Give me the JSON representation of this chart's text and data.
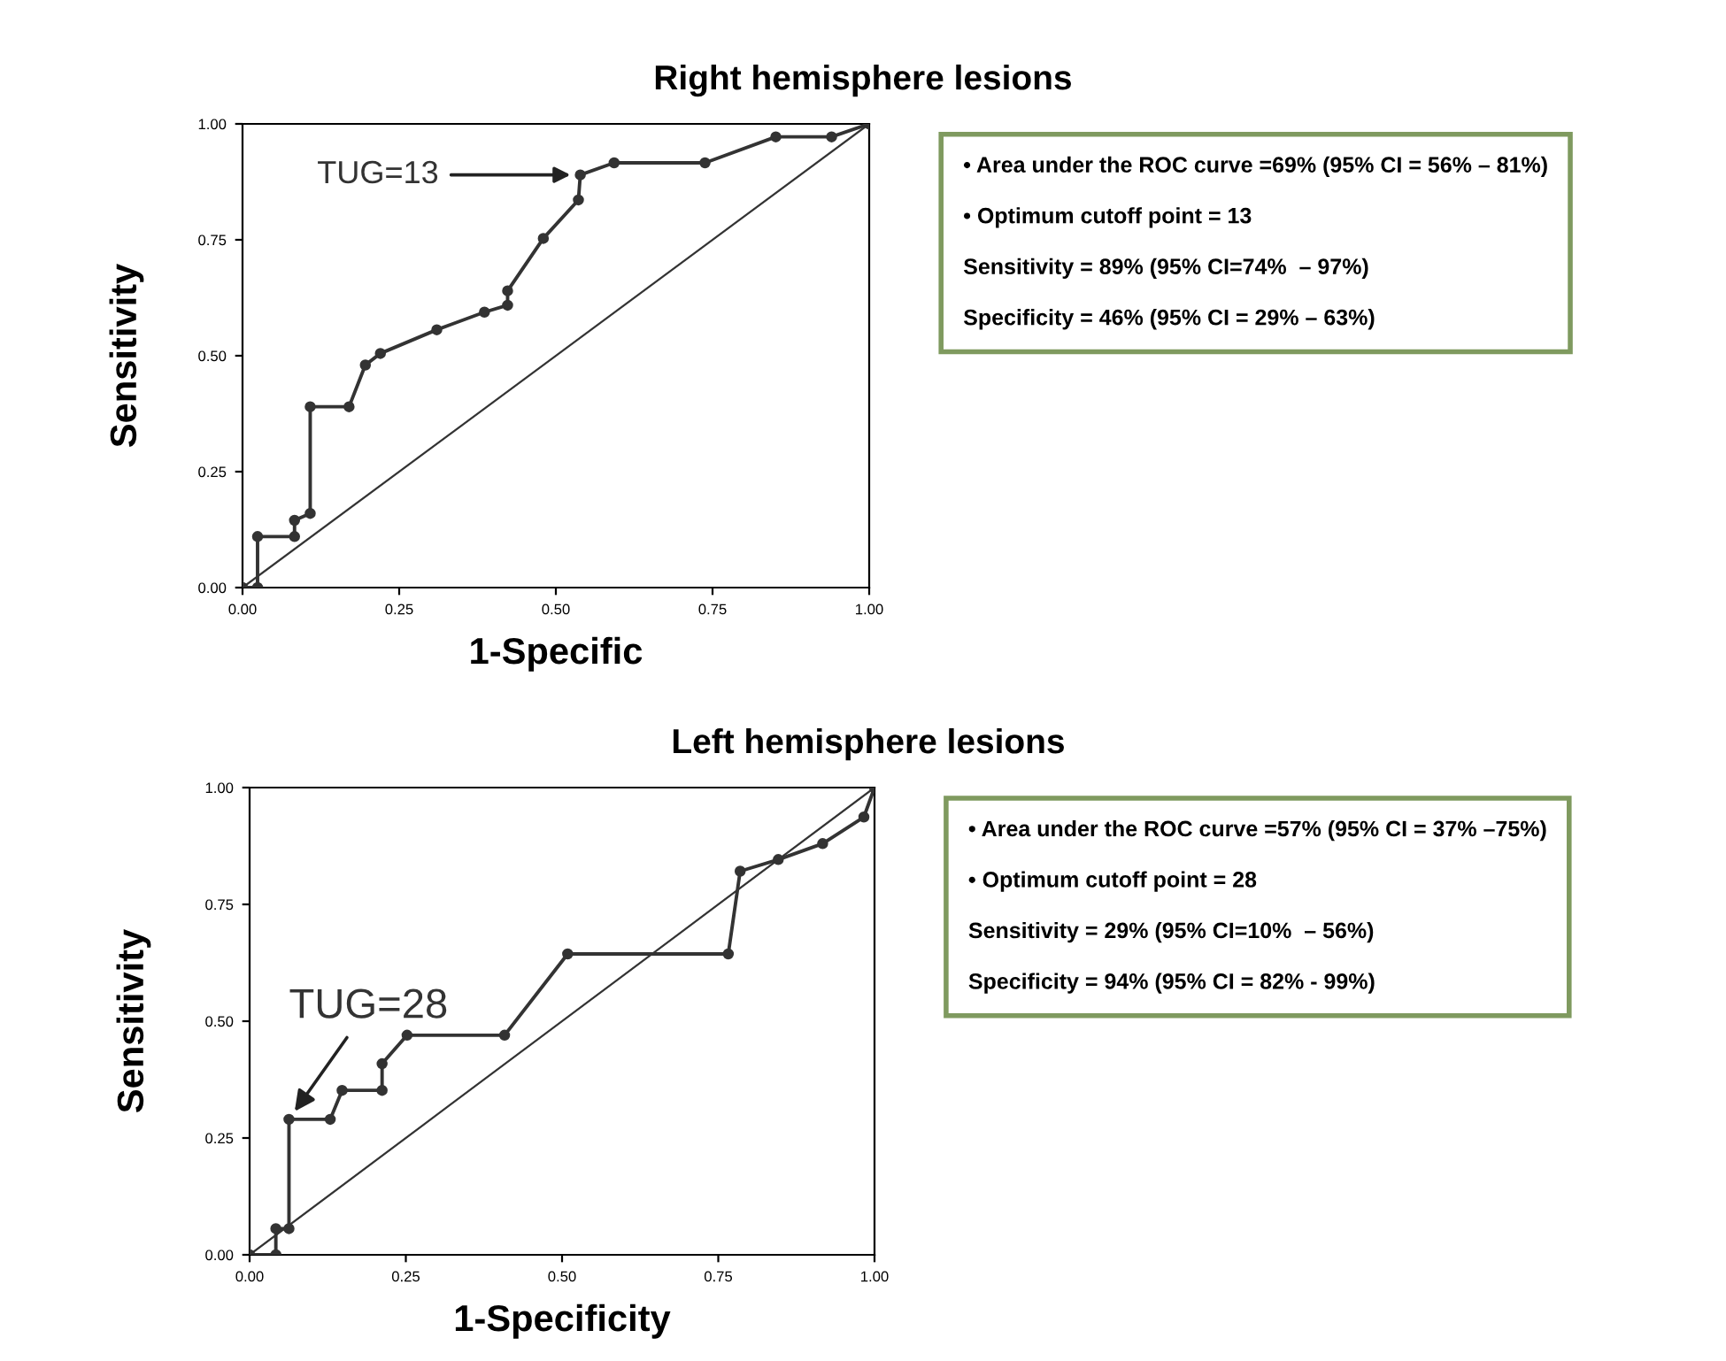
{
  "chart_data": [
    {
      "type": "line",
      "title": "Right hemisphere lesions",
      "xlabel": "1-Specific",
      "ylabel": "Sensitivity",
      "xlim": [
        0,
        1
      ],
      "ylim": [
        0,
        1
      ],
      "xticks": [
        {
          "value": 0,
          "label": "0.00"
        },
        {
          "value": 0.25,
          "label": "0.25"
        },
        {
          "value": 0.5,
          "label": "0.50"
        },
        {
          "value": 0.75,
          "label": "0.75"
        },
        {
          "value": 1,
          "label": "1.00"
        }
      ],
      "yticks": [
        {
          "value": 0,
          "label": "0.00"
        },
        {
          "value": 0.25,
          "label": "0.25"
        },
        {
          "value": 0.5,
          "label": "0.50"
        },
        {
          "value": 0.75,
          "label": "0.75"
        },
        {
          "value": 1,
          "label": "1.00"
        }
      ],
      "grid": false,
      "legend": false,
      "series": [
        {
          "color": "#333333",
          "marker": "circle",
          "x": [
            0,
            0.024,
            0.024,
            0.083,
            0.083,
            0.108,
            0.108,
            0.17,
            0.196,
            0.22,
            0.31,
            0.386,
            0.423,
            0.423,
            0.48,
            0.536,
            0.539,
            0.593,
            0.738,
            0.851,
            0.94,
            1
          ],
          "values": [
            0,
            0,
            0.11,
            0.11,
            0.145,
            0.16,
            0.39,
            0.39,
            0.48,
            0.505,
            0.556,
            0.594,
            0.609,
            0.64,
            0.753,
            0.836,
            0.89,
            0.916,
            0.916,
            0.972,
            0.972,
            1
          ]
        },
        {
          "color": "#333333",
          "marker": "none",
          "x": [
            0,
            1
          ],
          "values": [
            0,
            1
          ]
        }
      ],
      "annotations": [
        {
          "text": "TUG=13",
          "x": 0.539,
          "y": 0.89
        },
        "• Area under the ROC curve =69% (95% CI = 56% – 81%)",
        "• Optimum cutoff point = 13",
        "Sensitivity = 89% (95% CI=74%  – 97%)",
        "Specificity = 46% (95% CI = 29% – 63%)"
      ]
    },
    {
      "type": "line",
      "title": "Left hemisphere lesions",
      "xlabel": "1-Specificity",
      "ylabel": "Sensitivity",
      "xlim": [
        0,
        1
      ],
      "ylim": [
        0,
        1
      ],
      "xticks": [
        {
          "value": 0,
          "label": "0.00"
        },
        {
          "value": 0.25,
          "label": "0.25"
        },
        {
          "value": 0.5,
          "label": "0.50"
        },
        {
          "value": 0.75,
          "label": "0.75"
        },
        {
          "value": 1,
          "label": "1.00"
        }
      ],
      "yticks": [
        {
          "value": 0,
          "label": "0.00"
        },
        {
          "value": 0.25,
          "label": "0.25"
        },
        {
          "value": 0.5,
          "label": "0.50"
        },
        {
          "value": 0.75,
          "label": "0.75"
        },
        {
          "value": 1,
          "label": "1.00"
        }
      ],
      "grid": false,
      "legend": false,
      "series": [
        {
          "color": "#333333",
          "marker": "circle",
          "x": [
            0,
            0.042,
            0.042,
            0.063,
            0.063,
            0.129,
            0.148,
            0.212,
            0.212,
            0.252,
            0.408,
            0.509,
            0.766,
            0.785,
            0.846,
            0.917,
            0.983,
            1
          ],
          "values": [
            0,
            0,
            0.056,
            0.056,
            0.29,
            0.29,
            0.352,
            0.352,
            0.409,
            0.47,
            0.47,
            0.644,
            0.644,
            0.821,
            0.846,
            0.88,
            0.937,
            1
          ]
        },
        {
          "color": "#333333",
          "marker": "none",
          "x": [
            0,
            1
          ],
          "values": [
            0,
            1
          ]
        }
      ],
      "annotations": [
        {
          "text": "TUG=28",
          "x": 0.063,
          "y": 0.29
        },
        "• Area under the ROC curve =57% (95% CI = 37% –75%)",
        "• Optimum cutoff point = 28",
        "Sensitivity = 29% (95% CI=10%  – 56%)",
        "Specificity = 94% (95% CI = 82% - 99%)"
      ]
    }
  ]
}
